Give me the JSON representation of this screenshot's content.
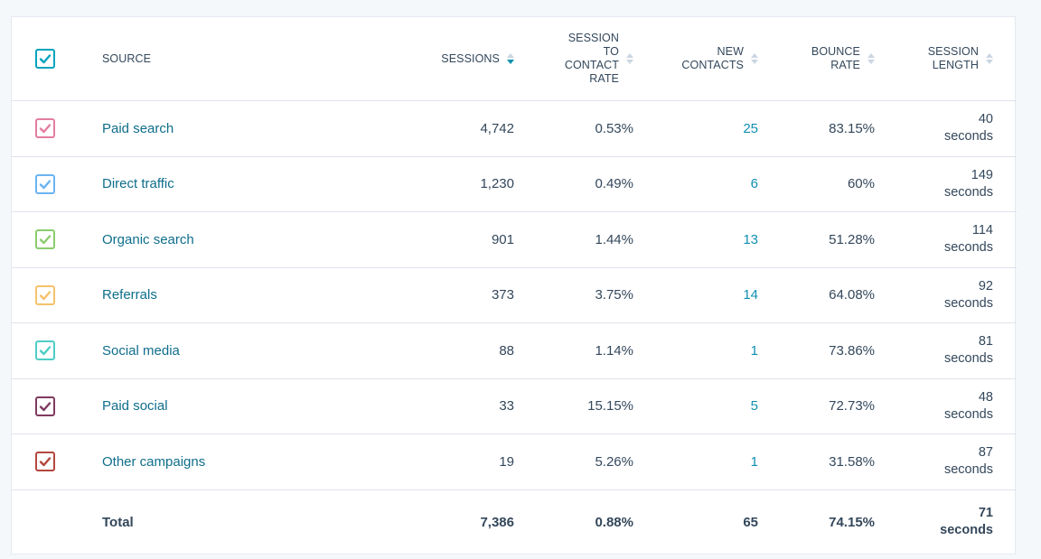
{
  "header": {
    "source": "SOURCE",
    "sessions": "SESSIONS",
    "session_to_contact_rate": [
      "SESSION",
      "TO",
      "CONTACT",
      "RATE"
    ],
    "new_contacts": [
      "NEW",
      "CONTACTS"
    ],
    "bounce_rate": [
      "BOUNCE",
      "RATE"
    ],
    "session_length": [
      "SESSION",
      "LENGTH"
    ],
    "master_checkbox_color": "#00a4bd"
  },
  "rows": [
    {
      "source": "Paid search",
      "sessions": "4,742",
      "rate": "0.53%",
      "new_contacts": "25",
      "bounce": "83.15%",
      "length_value": "40",
      "length_unit": "seconds",
      "color": "#e37ca1",
      "checked": true
    },
    {
      "source": "Direct traffic",
      "sessions": "1,230",
      "rate": "0.49%",
      "new_contacts": "6",
      "bounce": "60%",
      "length_value": "149",
      "length_unit": "seconds",
      "color": "#6ab4f2",
      "checked": true
    },
    {
      "source": "Organic search",
      "sessions": "901",
      "rate": "1.44%",
      "new_contacts": "13",
      "bounce": "51.28%",
      "length_value": "114",
      "length_unit": "seconds",
      "color": "#8ccc6e",
      "checked": true
    },
    {
      "source": "Referrals",
      "sessions": "373",
      "rate": "3.75%",
      "new_contacts": "14",
      "bounce": "64.08%",
      "length_value": "92",
      "length_unit": "seconds",
      "color": "#f5c26b",
      "checked": true
    },
    {
      "source": "Social media",
      "sessions": "88",
      "rate": "1.14%",
      "new_contacts": "1",
      "bounce": "73.86%",
      "length_value": "81",
      "length_unit": "seconds",
      "color": "#4fcdc4",
      "checked": true
    },
    {
      "source": "Paid social",
      "sessions": "33",
      "rate": "15.15%",
      "new_contacts": "5",
      "bounce": "72.73%",
      "length_value": "48",
      "length_unit": "seconds",
      "color": "#7f3a5e",
      "checked": true
    },
    {
      "source": "Other campaigns",
      "sessions": "19",
      "rate": "5.26%",
      "new_contacts": "1",
      "bounce": "31.58%",
      "length_value": "87",
      "length_unit": "seconds",
      "color": "#b4473d",
      "checked": true
    }
  ],
  "total": {
    "label": "Total",
    "sessions": "7,386",
    "rate": "0.88%",
    "new_contacts": "65",
    "bounce": "74.15%",
    "length_value": "71",
    "length_unit": "seconds"
  }
}
